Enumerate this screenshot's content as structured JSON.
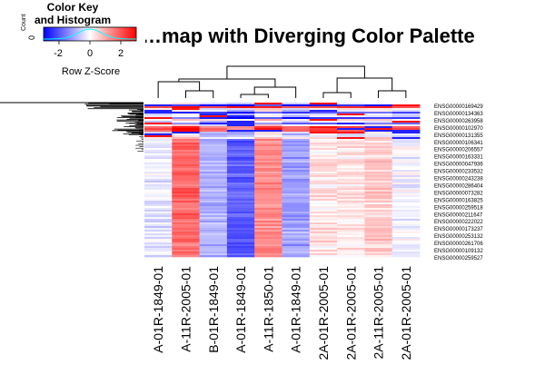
{
  "title": "…map with Diverging Color Palette",
  "color_key": {
    "title_line1": "Color Key",
    "title_line2": "and Histogram",
    "x_label": "Row Z-Score",
    "y_label": "Count",
    "y_tick": "0",
    "ticks": [
      "-2",
      "0",
      "2"
    ],
    "tick_values": [
      -2,
      0,
      2
    ],
    "range": [
      -3,
      3
    ],
    "colors": [
      "#0000ff",
      "#ffffff",
      "#ff0000"
    ]
  },
  "chart_data": {
    "type": "heatmap",
    "title": "…map with Diverging Color Palette",
    "scale": "row z-score",
    "palette": [
      "#0000ff",
      "#ffffff",
      "#ff0000"
    ],
    "columns": [
      "A-01R-1849-01",
      "A-11R-2005-01",
      "B-01R-1849-01",
      "A-01R-1849-01",
      "A-11R-1850-01",
      "A-01R-1849-01",
      "A-01R-2005-01",
      "A-01R-2005-01",
      "A-11R-2005-01",
      "A-01R-2005-01"
    ],
    "column_labels_display": [
      "A-01R-1849-01",
      "A-11R-2005-01",
      "B-01R-1849-01",
      "A-01R-1849-01",
      "A-11R-1850-01",
      "A-01R-1849-01",
      "2A-01R-2005-01",
      "2A-01R-2005-01",
      "2A-11R-2005-01",
      "2A-01R-2005-01"
    ],
    "row_labels": [
      "ENSG00000169429",
      "ENSG00000134363",
      "ENSG00000263958",
      "ENSG00000102970",
      "ENSG00000131355",
      "ENSG00000106341",
      "ENSG00000206557",
      "ENSG00000163331",
      "ENSG00000047936",
      "ENSG00000233532",
      "ENSG00000243238",
      "ENSG00000286404",
      "ENSG00000073282",
      "ENSG00000163825",
      "ENSG00000259518",
      "ENSG00000211647",
      "ENSG00000222022",
      "ENSG00000173237",
      "ENSG00000253132",
      "ENSG00000261706",
      "ENSG00000109132",
      "ENSG00000259527"
    ],
    "column_mean_zscore": [
      -0.3,
      1.8,
      -0.9,
      -1.9,
      1.4,
      -1.1,
      0.3,
      0.3,
      0.6,
      -0.1
    ],
    "column_dendrogram": "present",
    "row_dendrogram": "present"
  }
}
